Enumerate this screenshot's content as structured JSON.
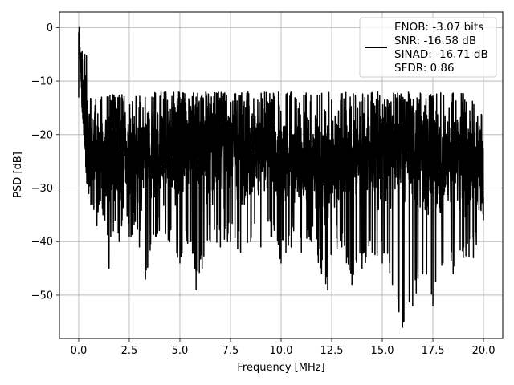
{
  "chart_data": {
    "type": "line",
    "title": "",
    "xlabel": "Frequency [MHz]",
    "ylabel": "PSD [dB]",
    "xlim": [
      -0.95,
      20.95
    ],
    "ylim": [
      -58.1,
      2.9
    ],
    "xticks": [
      0.0,
      2.5,
      5.0,
      7.5,
      10.0,
      12.5,
      15.0,
      17.5,
      20.0
    ],
    "xtick_labels": [
      "0.0",
      "2.5",
      "5.0",
      "7.5",
      "10.0",
      "12.5",
      "15.0",
      "17.5",
      "20.0"
    ],
    "yticks": [
      0,
      -10,
      -20,
      -30,
      -40,
      -50
    ],
    "ytick_labels": [
      "0",
      "−10",
      "−20",
      "−30",
      "−40",
      "−50"
    ],
    "grid": true,
    "legend_position": "top-right",
    "legend_lines": [
      "ENOB: -3.07 bits",
      "SNR: -16.58 dB",
      "SINAD: -16.71 dB",
      "SFDR: 0.86"
    ],
    "series": [
      {
        "color": "#000000",
        "description": "noisy PSD trace from 0 to 20 MHz, peak 0 dB near 0 MHz, floor mostly between -15 and -35 dB with dips to about -55 dB",
        "x": [
          0.0,
          0.02,
          0.05,
          0.08,
          0.12,
          0.16,
          0.2,
          0.25,
          0.3,
          0.35,
          0.4,
          0.5,
          0.6,
          0.75,
          0.9,
          1.0,
          1.2,
          1.5,
          1.8,
          2.0,
          2.5,
          3.0,
          3.3,
          3.8,
          4.5,
          5.0,
          5.5,
          5.8,
          6.5,
          7.0,
          7.5,
          8.0,
          8.5,
          9.0,
          9.5,
          10.0,
          10.5,
          11.0,
          11.5,
          12.0,
          12.3,
          12.5,
          13.0,
          13.5,
          14.0,
          14.5,
          15.0,
          15.5,
          16.0,
          16.5,
          17.0,
          17.5,
          18.0,
          18.5,
          19.0,
          19.5,
          20.0
        ],
        "y": [
          -13,
          0,
          -4,
          -8,
          -10,
          -15,
          -17,
          -20,
          -22,
          -26,
          -29,
          -31,
          -33,
          -34,
          -37,
          -33,
          -35,
          -45,
          -36,
          -40,
          -39,
          -41,
          -47,
          -39,
          -40,
          -44,
          -40,
          -49,
          -40,
          -41,
          -40,
          -42,
          -40,
          -41,
          -39,
          -44,
          -41,
          -42,
          -40,
          -46,
          -49,
          -42,
          -41,
          -48,
          -45,
          -42,
          -44,
          -48,
          -56,
          -52,
          -46,
          -52,
          -44,
          -46,
          -43,
          -43,
          -36
        ]
      }
    ]
  }
}
